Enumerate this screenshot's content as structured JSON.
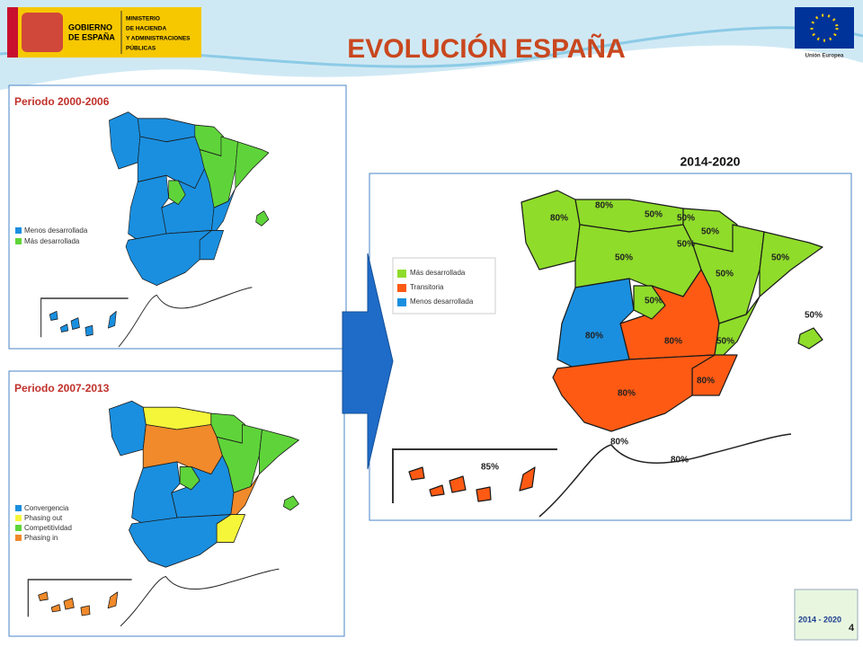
{
  "header": {
    "government": [
      "GOBIERNO",
      "DE ESPAÑA"
    ],
    "ministry": [
      "MINISTERIO",
      "DE HACIENDA",
      "Y ADMINISTRACIONES",
      "PÚBLICAS"
    ],
    "title": "EVOLUCIÓN ESPAÑA",
    "eu": "Unión Europea"
  },
  "maps": [
    {
      "title": "Periodo 2000-2006",
      "legend": [
        {
          "label": "Menos desarrollada",
          "color": "#1a8fdf"
        },
        {
          "label": "Más desarrollada",
          "color": "#5fd43a"
        }
      ]
    },
    {
      "title": "Periodo 2007-2013",
      "legend": [
        {
          "label": "Convergencia",
          "color": "#1a8fdf"
        },
        {
          "label": "Phasing out",
          "color": "#f5f53a"
        },
        {
          "label": "Competitividad",
          "color": "#5fd43a"
        },
        {
          "label": "Phasing in",
          "color": "#f08a2a"
        }
      ]
    },
    {
      "title": "2014-2020",
      "legend": [
        {
          "label": "Más desarrollada",
          "color": "#8fdc2a"
        },
        {
          "label": "Transitoria",
          "color": "#ff5a14"
        },
        {
          "label": "Menos desarrollada",
          "color": "#1a8fdf"
        }
      ],
      "labels": [
        "80%",
        "80%",
        "50%",
        "50%",
        "50%",
        "50%",
        "50%",
        "50%",
        "50%",
        "50%",
        "50%",
        "80%",
        "80%",
        "50%",
        "80%",
        "80%",
        "85%",
        "80%",
        "80%"
      ]
    }
  ],
  "footer": {
    "logo": "2014 - 2020",
    "page": "4"
  }
}
